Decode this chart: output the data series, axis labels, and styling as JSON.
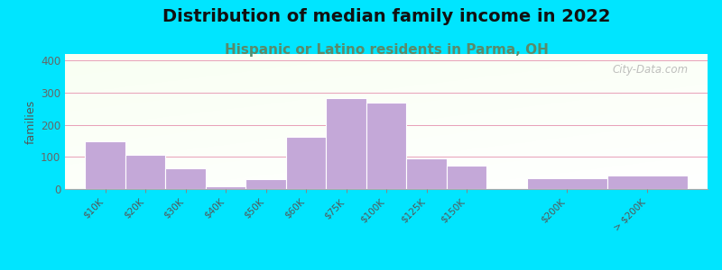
{
  "title": "Distribution of median family income in 2022",
  "subtitle": "Hispanic or Latino residents in Parma, OH",
  "ylabel": "families",
  "categories": [
    "$10K",
    "$20K",
    "$30K",
    "$40K",
    "$50K",
    "$60K",
    "$75K",
    "$100K",
    "$125K",
    "$150K",
    "$200K",
    "> $200K"
  ],
  "values": [
    148,
    107,
    65,
    8,
    30,
    163,
    283,
    270,
    95,
    72,
    33,
    42
  ],
  "bar_widths": [
    1,
    1,
    1,
    1,
    1,
    1,
    1,
    1,
    1,
    1,
    2,
    2
  ],
  "bar_lefts": [
    0,
    1,
    2,
    3,
    4,
    5,
    6,
    7,
    8,
    9,
    11,
    13
  ],
  "bar_color": "#c4a8d8",
  "bar_edge_color": "#ffffff",
  "background_outer": "#00e5ff",
  "grid_color": "#e8a0b8",
  "title_fontsize": 14,
  "subtitle_fontsize": 11,
  "subtitle_color": "#5a8a6a",
  "ylim": [
    0,
    420
  ],
  "yticks": [
    0,
    100,
    200,
    300,
    400
  ],
  "xtick_positions": [
    0.5,
    1.5,
    2.5,
    3.5,
    4.5,
    5.5,
    6.5,
    7.5,
    8.5,
    9.5,
    12,
    14
  ],
  "watermark": "City-Data.com"
}
